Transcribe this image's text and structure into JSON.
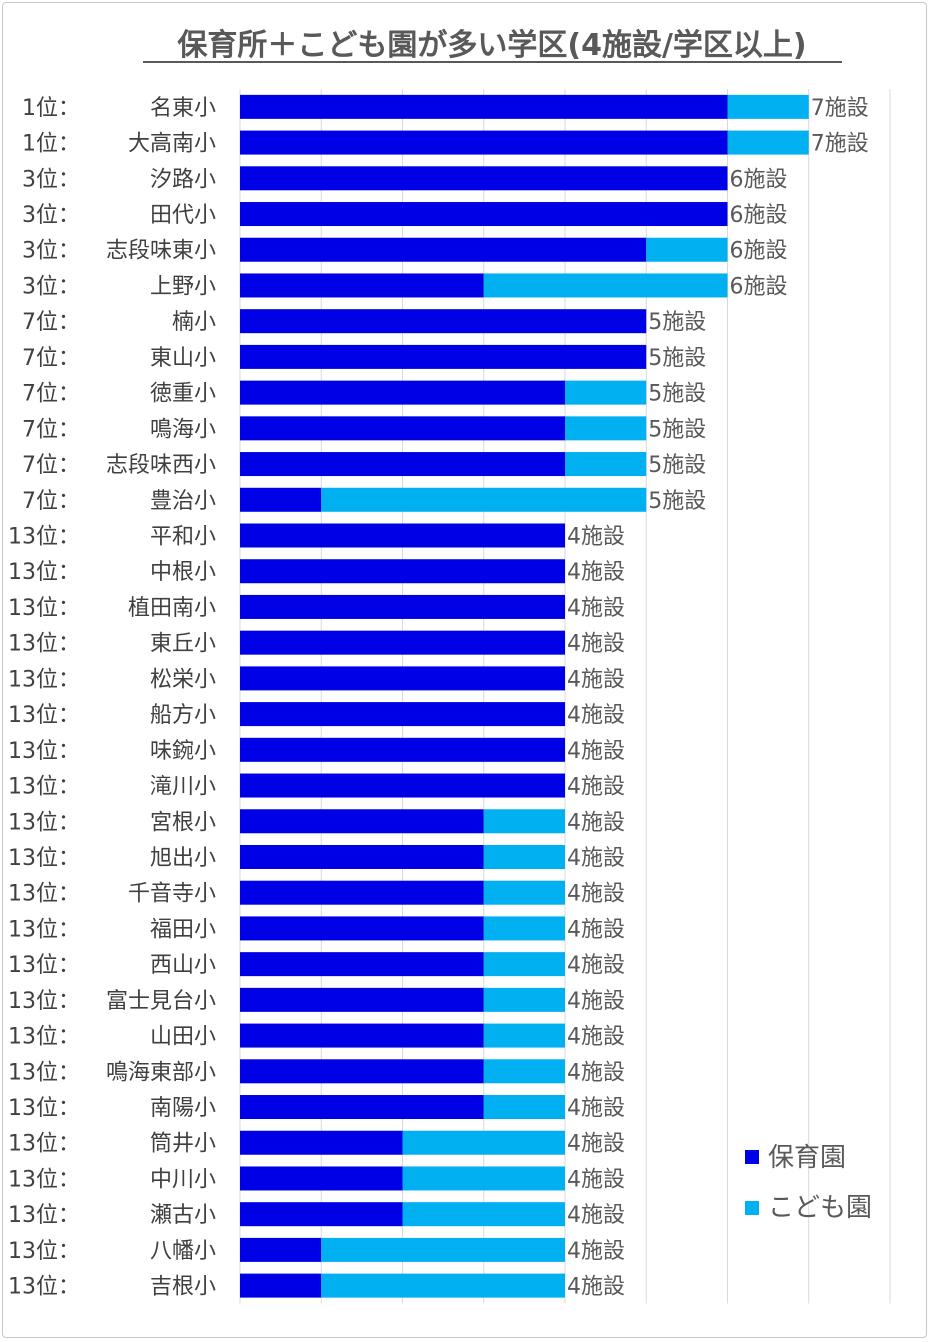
{
  "chart_data": {
    "type": "bar",
    "orientation": "horizontal",
    "stacked": true,
    "title": "保育所＋こども園が多い学区(4施設/学区以上)",
    "xlim": [
      0,
      8
    ],
    "grid": true,
    "legend_position": "right",
    "categories": [
      {
        "rank": "1位：",
        "name": "名東小"
      },
      {
        "rank": "1位：",
        "name": "大高南小"
      },
      {
        "rank": "3位：",
        "name": "汐路小"
      },
      {
        "rank": "3位：",
        "name": "田代小"
      },
      {
        "rank": "3位：",
        "name": "志段味東小"
      },
      {
        "rank": "3位：",
        "name": "上野小"
      },
      {
        "rank": "7位：",
        "name": "楠小"
      },
      {
        "rank": "7位：",
        "name": "東山小"
      },
      {
        "rank": "7位：",
        "name": "徳重小"
      },
      {
        "rank": "7位：",
        "name": "鳴海小"
      },
      {
        "rank": "7位：",
        "name": "志段味西小"
      },
      {
        "rank": "7位：",
        "name": "豊治小"
      },
      {
        "rank": "13位：",
        "name": "平和小"
      },
      {
        "rank": "13位：",
        "name": "中根小"
      },
      {
        "rank": "13位：",
        "name": "植田南小"
      },
      {
        "rank": "13位：",
        "name": "東丘小"
      },
      {
        "rank": "13位：",
        "name": "松栄小"
      },
      {
        "rank": "13位：",
        "name": "船方小"
      },
      {
        "rank": "13位：",
        "name": "味鋺小"
      },
      {
        "rank": "13位：",
        "name": "滝川小"
      },
      {
        "rank": "13位：",
        "name": "宮根小"
      },
      {
        "rank": "13位：",
        "name": "旭出小"
      },
      {
        "rank": "13位：",
        "name": "千音寺小"
      },
      {
        "rank": "13位：",
        "name": "福田小"
      },
      {
        "rank": "13位：",
        "name": "西山小"
      },
      {
        "rank": "13位：",
        "name": "富士見台小"
      },
      {
        "rank": "13位：",
        "name": "山田小"
      },
      {
        "rank": "13位：",
        "name": "鳴海東部小"
      },
      {
        "rank": "13位：",
        "name": "南陽小"
      },
      {
        "rank": "13位：",
        "name": "筒井小"
      },
      {
        "rank": "13位：",
        "name": "中川小"
      },
      {
        "rank": "13位：",
        "name": "瀬古小"
      },
      {
        "rank": "13位：",
        "name": "八幡小"
      },
      {
        "rank": "13位：",
        "name": "吉根小"
      }
    ],
    "series": [
      {
        "name": "保育園",
        "color": "#0000e6",
        "values": [
          6,
          6,
          6,
          6,
          5,
          3,
          5,
          5,
          4,
          4,
          4,
          1,
          4,
          4,
          4,
          4,
          4,
          4,
          4,
          4,
          3,
          3,
          3,
          3,
          3,
          3,
          3,
          3,
          3,
          2,
          2,
          2,
          1,
          1
        ]
      },
      {
        "name": "こども園",
        "color": "#00b0f0",
        "values": [
          1,
          1,
          0,
          0,
          1,
          3,
          0,
          0,
          1,
          1,
          1,
          4,
          0,
          0,
          0,
          0,
          0,
          0,
          0,
          0,
          1,
          1,
          1,
          1,
          1,
          1,
          1,
          1,
          1,
          2,
          2,
          2,
          3,
          3
        ]
      }
    ],
    "data_labels": [
      "7施設",
      "7施設",
      "6施設",
      "6施設",
      "6施設",
      "6施設",
      "5施設",
      "5施設",
      "5施設",
      "5施設",
      "5施設",
      "5施設",
      "4施設",
      "4施設",
      "4施設",
      "4施設",
      "4施設",
      "4施設",
      "4施設",
      "4施設",
      "4施設",
      "4施設",
      "4施設",
      "4施設",
      "4施設",
      "4施設",
      "4施設",
      "4施設",
      "4施設",
      "4施設",
      "4施設",
      "4施設",
      "4施設",
      "4施設"
    ]
  }
}
